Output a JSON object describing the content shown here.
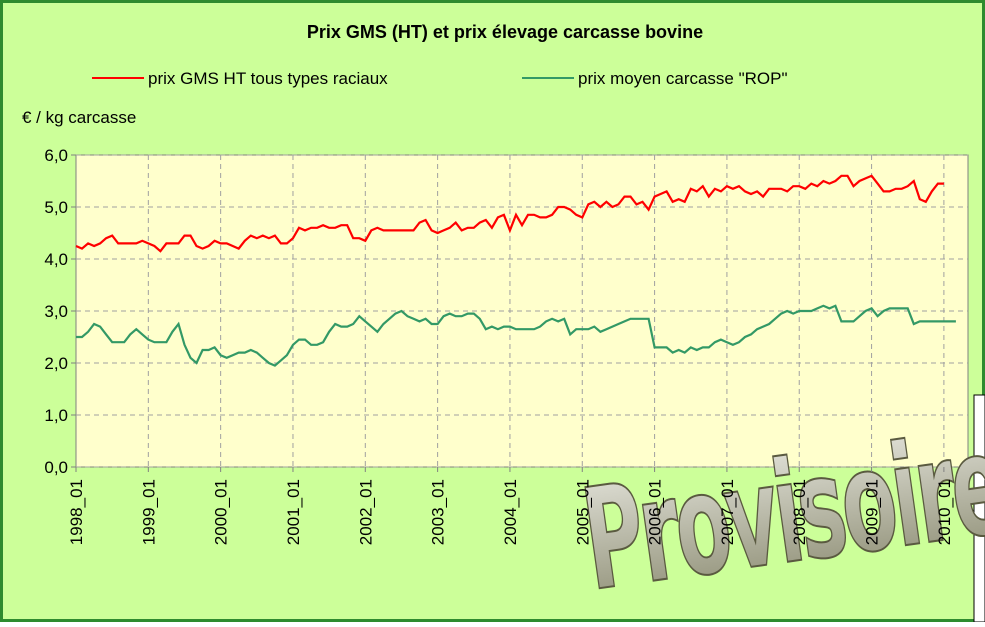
{
  "chart_data": {
    "type": "line",
    "title": "Prix GMS (HT) et prix élevage carcasse bovine",
    "y_label": "€ / kg carcasse",
    "watermark": "Provisoire",
    "categories": [
      "1998_01",
      null,
      null,
      null,
      null,
      null,
      null,
      null,
      null,
      null,
      null,
      null,
      "1999_01",
      null,
      null,
      null,
      null,
      null,
      null,
      null,
      null,
      null,
      null,
      null,
      "2000_01",
      null,
      null,
      null,
      null,
      null,
      null,
      null,
      null,
      null,
      null,
      null,
      "2001_01",
      null,
      null,
      null,
      null,
      null,
      null,
      null,
      null,
      null,
      null,
      null,
      "2002_01",
      null,
      null,
      null,
      null,
      null,
      null,
      null,
      null,
      null,
      null,
      null,
      "2003_01",
      null,
      null,
      null,
      null,
      null,
      null,
      null,
      null,
      null,
      null,
      null,
      "2004_01",
      null,
      null,
      null,
      null,
      null,
      null,
      null,
      null,
      null,
      null,
      null,
      "2005_01",
      null,
      null,
      null,
      null,
      null,
      null,
      null,
      null,
      null,
      null,
      null,
      "2006_01",
      null,
      null,
      null,
      null,
      null,
      null,
      null,
      null,
      null,
      null,
      null,
      "2007_01",
      null,
      null,
      null,
      null,
      null,
      null,
      null,
      null,
      null,
      null,
      null,
      "2008_01",
      null,
      null,
      null,
      null,
      null,
      null,
      null,
      null,
      null,
      null,
      null,
      "2009_01",
      null,
      null,
      null,
      null,
      null,
      null,
      null,
      null,
      null,
      null,
      null,
      "2010_01",
      null,
      null,
      null
    ],
    "series": [
      {
        "name": "prix GMS HT tous types raciaux",
        "color": "#ff0000",
        "values": [
          4.25,
          4.2,
          4.3,
          4.25,
          4.3,
          4.4,
          4.45,
          4.3,
          4.3,
          4.3,
          4.3,
          4.35,
          4.3,
          4.25,
          4.15,
          4.3,
          4.3,
          4.3,
          4.45,
          4.45,
          4.25,
          4.2,
          4.25,
          4.35,
          4.3,
          4.3,
          4.25,
          4.2,
          4.35,
          4.45,
          4.4,
          4.45,
          4.4,
          4.45,
          4.3,
          4.3,
          4.4,
          4.6,
          4.55,
          4.6,
          4.6,
          4.65,
          4.6,
          4.6,
          4.65,
          4.65,
          4.4,
          4.4,
          4.35,
          4.55,
          4.6,
          4.55,
          4.55,
          4.55,
          4.55,
          4.55,
          4.55,
          4.7,
          4.75,
          4.55,
          4.5,
          4.55,
          4.6,
          4.7,
          4.55,
          4.6,
          4.6,
          4.7,
          4.75,
          4.6,
          4.8,
          4.85,
          4.55,
          4.85,
          4.65,
          4.85,
          4.85,
          4.8,
          4.8,
          4.85,
          5.0,
          5.0,
          4.95,
          4.85,
          4.8,
          5.05,
          5.1,
          5.0,
          5.1,
          5.0,
          5.05,
          5.2,
          5.2,
          5.05,
          5.1,
          4.95,
          5.2,
          5.25,
          5.3,
          5.1,
          5.15,
          5.1,
          5.35,
          5.3,
          5.4,
          5.2,
          5.35,
          5.3,
          5.4,
          5.35,
          5.4,
          5.3,
          5.25,
          5.3,
          5.2,
          5.35,
          5.35,
          5.35,
          5.3,
          5.4,
          5.4,
          5.35,
          5.45,
          5.4,
          5.5,
          5.45,
          5.5,
          5.6,
          5.6,
          5.4,
          5.5,
          5.55,
          5.6,
          5.45,
          5.3,
          5.3,
          5.35,
          5.35,
          5.4,
          5.5,
          5.15,
          5.1,
          5.3,
          5.45,
          5.45,
          null,
          null,
          null
        ]
      },
      {
        "name": "prix moyen carcasse \"ROP\"",
        "color": "#339966",
        "values": [
          2.5,
          2.5,
          2.6,
          2.75,
          2.7,
          2.55,
          2.4,
          2.4,
          2.4,
          2.55,
          2.65,
          2.55,
          2.45,
          2.4,
          2.4,
          2.4,
          2.6,
          2.75,
          2.35,
          2.1,
          2.0,
          2.25,
          2.25,
          2.3,
          2.15,
          2.1,
          2.15,
          2.2,
          2.2,
          2.25,
          2.2,
          2.1,
          2.0,
          1.95,
          2.05,
          2.15,
          2.35,
          2.45,
          2.45,
          2.35,
          2.35,
          2.4,
          2.6,
          2.75,
          2.7,
          2.7,
          2.75,
          2.9,
          2.8,
          2.7,
          2.6,
          2.75,
          2.85,
          2.95,
          3.0,
          2.9,
          2.85,
          2.8,
          2.85,
          2.75,
          2.75,
          2.9,
          2.95,
          2.9,
          2.9,
          2.95,
          2.95,
          2.85,
          2.65,
          2.7,
          2.65,
          2.7,
          2.7,
          2.65,
          2.65,
          2.65,
          2.65,
          2.7,
          2.8,
          2.85,
          2.8,
          2.85,
          2.55,
          2.65,
          2.65,
          2.65,
          2.7,
          2.6,
          2.65,
          2.7,
          2.75,
          2.8,
          2.85,
          2.85,
          2.85,
          2.85,
          2.3,
          2.3,
          2.3,
          2.2,
          2.25,
          2.2,
          2.3,
          2.25,
          2.3,
          2.3,
          2.4,
          2.45,
          2.4,
          2.35,
          2.4,
          2.5,
          2.55,
          2.65,
          2.7,
          2.75,
          2.85,
          2.95,
          3.0,
          2.95,
          3.0,
          3.0,
          3.0,
          3.05,
          3.1,
          3.05,
          3.1,
          2.8,
          2.8,
          2.8,
          2.9,
          3.0,
          3.05,
          2.9,
          3.0,
          3.05,
          3.05,
          3.05,
          3.05,
          2.75,
          2.8,
          2.8,
          2.8,
          2.8,
          2.8,
          2.8,
          2.8,
          null
        ]
      }
    ],
    "ylim": [
      0,
      6
    ],
    "yticks": [
      {
        "value": 0,
        "label": "0,0"
      },
      {
        "value": 1,
        "label": "1,0"
      },
      {
        "value": 2,
        "label": "2,0"
      },
      {
        "value": 3,
        "label": "3,0"
      },
      {
        "value": 4,
        "label": "4,0"
      },
      {
        "value": 5,
        "label": "5,0"
      },
      {
        "value": 6,
        "label": "6,0"
      }
    ],
    "grid": true
  }
}
